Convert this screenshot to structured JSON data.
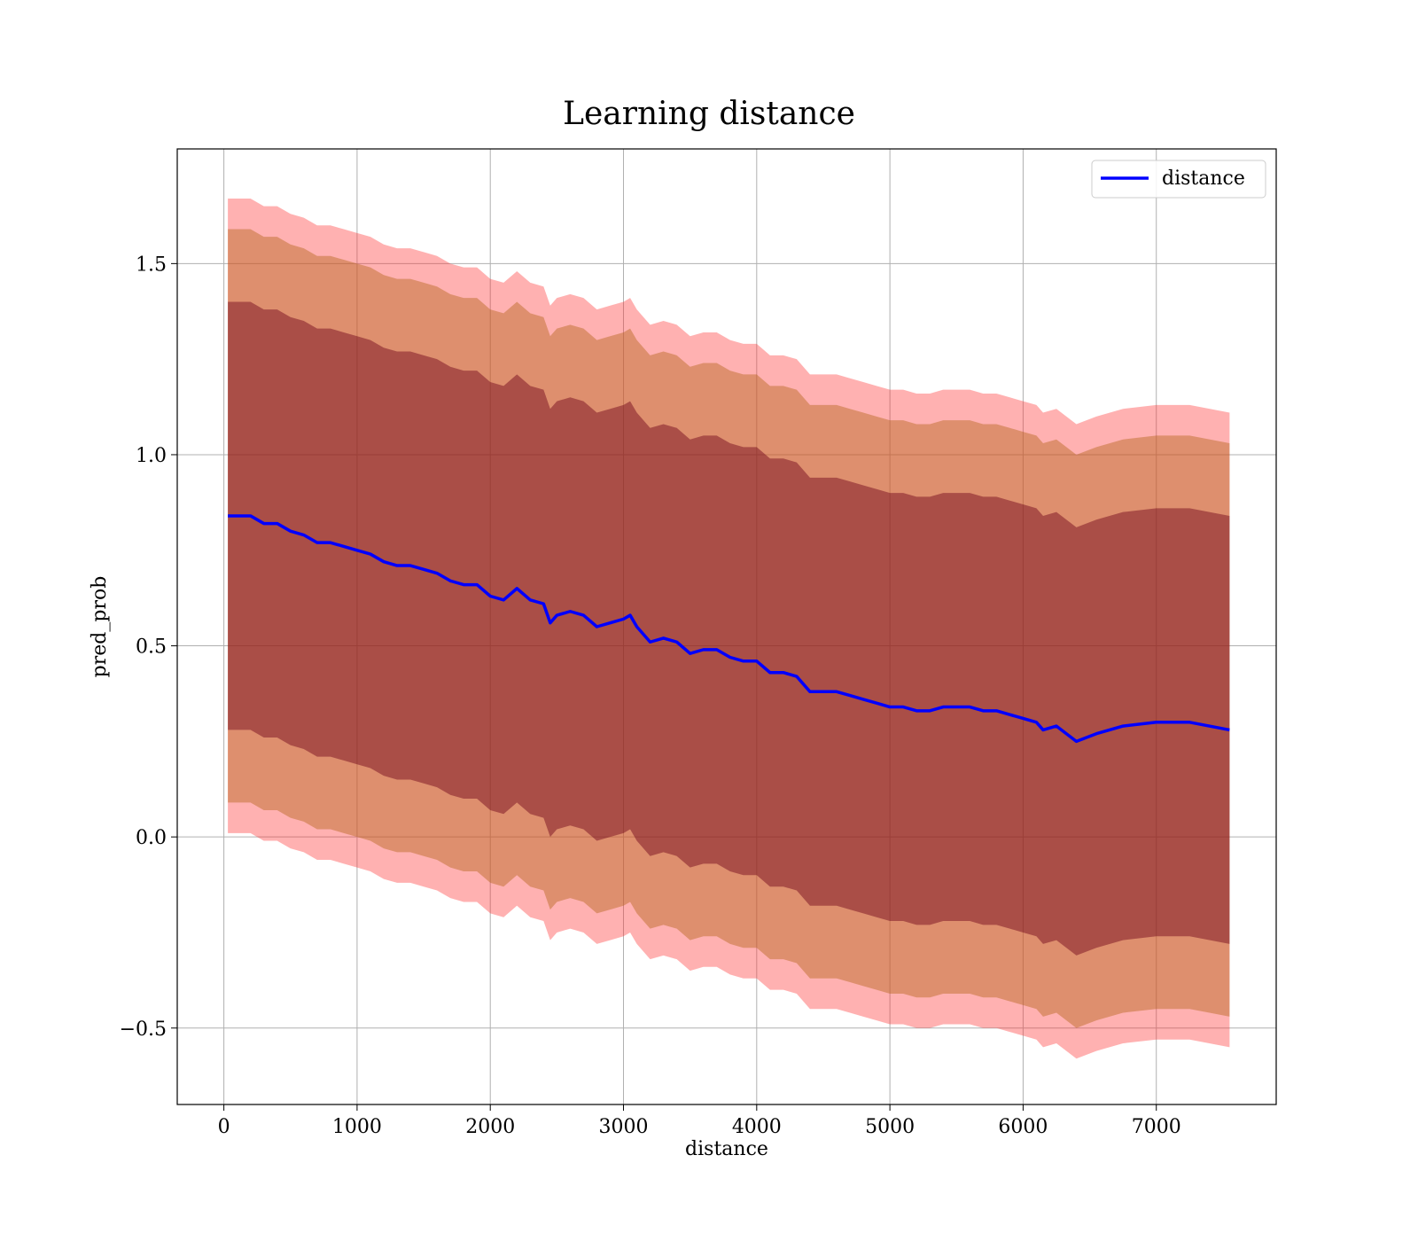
{
  "chart_data": {
    "type": "line",
    "title": "Learning distance",
    "xlabel": "distance",
    "ylabel": "pred_prob",
    "xlim": [
      -350,
      7900
    ],
    "ylim": [
      -0.7,
      1.8
    ],
    "xticks": [
      0,
      1000,
      2000,
      3000,
      4000,
      5000,
      6000,
      7000
    ],
    "xtick_labels": [
      "0",
      "1000",
      "2000",
      "3000",
      "4000",
      "5000",
      "6000",
      "7000"
    ],
    "yticks": [
      -0.5,
      0.0,
      0.5,
      1.0,
      1.5
    ],
    "ytick_labels": [
      "−0.5",
      "0.0",
      "0.5",
      "1.0",
      "1.5"
    ],
    "grid": true,
    "legend": {
      "position": "top-right",
      "entries": [
        "distance"
      ]
    },
    "series": [
      {
        "name": "distance",
        "color": "#0000ff",
        "x": [
          30,
          100,
          200,
          300,
          400,
          500,
          600,
          700,
          800,
          900,
          1000,
          1100,
          1200,
          1300,
          1400,
          1500,
          1600,
          1700,
          1800,
          1900,
          2000,
          2100,
          2200,
          2300,
          2400,
          2450,
          2500,
          2600,
          2700,
          2800,
          2900,
          3000,
          3050,
          3100,
          3200,
          3300,
          3400,
          3500,
          3600,
          3700,
          3800,
          3900,
          4000,
          4100,
          4200,
          4300,
          4400,
          4500,
          4600,
          4700,
          4800,
          4900,
          5000,
          5100,
          5200,
          5300,
          5400,
          5500,
          5600,
          5700,
          5800,
          5900,
          6000,
          6100,
          6150,
          6250,
          6400,
          6550,
          6750,
          7000,
          7250,
          7550
        ],
        "y": [
          0.84,
          0.84,
          0.84,
          0.82,
          0.82,
          0.8,
          0.79,
          0.77,
          0.77,
          0.76,
          0.75,
          0.74,
          0.72,
          0.71,
          0.71,
          0.7,
          0.69,
          0.67,
          0.66,
          0.66,
          0.63,
          0.62,
          0.65,
          0.62,
          0.61,
          0.56,
          0.58,
          0.59,
          0.58,
          0.55,
          0.56,
          0.57,
          0.58,
          0.55,
          0.51,
          0.52,
          0.51,
          0.48,
          0.49,
          0.49,
          0.47,
          0.46,
          0.46,
          0.43,
          0.43,
          0.42,
          0.38,
          0.38,
          0.38,
          0.37,
          0.36,
          0.35,
          0.34,
          0.34,
          0.33,
          0.33,
          0.34,
          0.34,
          0.34,
          0.33,
          0.33,
          0.32,
          0.31,
          0.3,
          0.28,
          0.29,
          0.25,
          0.27,
          0.29,
          0.3,
          0.3,
          0.28
        ],
        "band_inner": {
          "color": "#6b0018",
          "alpha": 0.45,
          "offset": 0.56
        },
        "band_middle": {
          "color": "#b5651d",
          "alpha": 0.45,
          "offset": 0.75
        },
        "band_outer": {
          "color": "#ff3333",
          "alpha": 0.38,
          "offset": 0.83
        }
      }
    ]
  }
}
